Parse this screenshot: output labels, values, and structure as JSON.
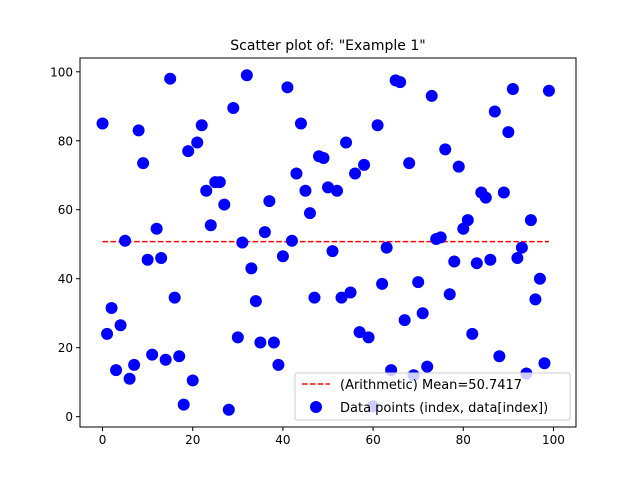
{
  "chart_data": {
    "type": "scatter",
    "title": "Scatter plot of: \"Example 1\"",
    "xlabel": "",
    "ylabel": "",
    "xlim": [
      -5,
      105
    ],
    "ylim": [
      -3,
      104
    ],
    "xticks": [
      0,
      20,
      40,
      60,
      80,
      100
    ],
    "yticks": [
      0,
      20,
      40,
      60,
      80,
      100
    ],
    "grid": false,
    "legend_position": "bottom-right",
    "mean": {
      "label": "(Arithmetic) Mean=50.7417",
      "value": 50.7417,
      "x_range": [
        0,
        99
      ],
      "color": "#ff0000",
      "style": "dashed"
    },
    "series": [
      {
        "name": "Data points (index, data[index])",
        "color": "#0000ff",
        "x": [
          0,
          1,
          2,
          3,
          4,
          5,
          6,
          7,
          8,
          9,
          10,
          11,
          12,
          13,
          14,
          15,
          16,
          17,
          18,
          19,
          20,
          21,
          22,
          23,
          24,
          25,
          26,
          27,
          28,
          29,
          30,
          31,
          32,
          33,
          34,
          35,
          36,
          37,
          38,
          39,
          40,
          41,
          42,
          43,
          44,
          45,
          46,
          47,
          48,
          49,
          50,
          51,
          52,
          53,
          54,
          55,
          56,
          57,
          58,
          59,
          60,
          61,
          62,
          63,
          64,
          65,
          66,
          67,
          68,
          69,
          70,
          71,
          72,
          73,
          74,
          75,
          76,
          77,
          78,
          79,
          80,
          81,
          82,
          83,
          84,
          85,
          86,
          87,
          88,
          89,
          90,
          91,
          92,
          93,
          94,
          95,
          96,
          97,
          98,
          99
        ],
        "y": [
          85,
          24,
          31.5,
          13.5,
          26.5,
          51,
          11,
          15,
          83,
          73.5,
          45.5,
          18,
          54.5,
          46,
          16.5,
          98,
          34.5,
          17.5,
          3.5,
          77,
          10.5,
          79.5,
          84.5,
          65.5,
          55.5,
          68,
          68,
          61.5,
          2,
          89.5,
          23,
          50.5,
          99,
          43,
          33.5,
          21.5,
          53.5,
          62.5,
          21.5,
          15,
          46.5,
          95.5,
          51,
          70.5,
          85,
          65.5,
          59,
          34.5,
          75.5,
          75,
          66.5,
          48,
          65.5,
          34.5,
          79.5,
          36,
          70.5,
          24.5,
          73,
          23,
          3,
          84.5,
          38.5,
          49,
          13.5,
          97.5,
          97,
          28,
          73.5,
          12,
          39,
          30,
          14.5,
          93,
          51.5,
          52,
          77.5,
          35.5,
          45,
          72.5,
          54.5,
          57,
          24,
          44.5,
          65,
          63.5,
          45.5,
          88.5,
          17.5,
          65,
          82.5,
          95,
          46,
          49,
          12.5,
          57,
          34,
          40,
          15.5,
          94.5
        ]
      }
    ]
  }
}
